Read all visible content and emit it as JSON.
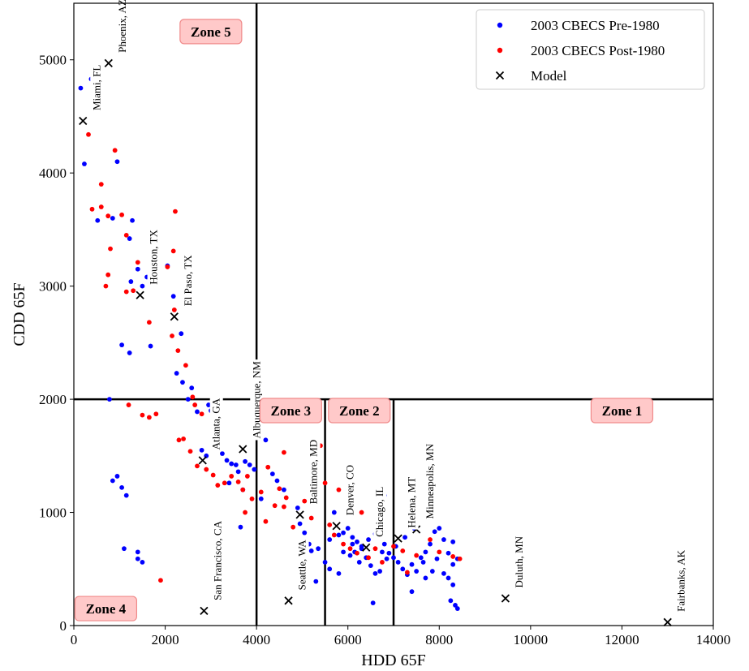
{
  "chart_data": {
    "type": "scatter",
    "xlabel": "HDD 65F",
    "ylabel": "CDD 65F",
    "xlim": [
      0,
      14000
    ],
    "ylim": [
      0,
      5500
    ],
    "xticks": [
      "0",
      "2000",
      "4000",
      "6000",
      "8000",
      "10000",
      "12000",
      "14000"
    ],
    "yticks": [
      "0",
      "1000",
      "2000",
      "3000",
      "4000",
      "5000"
    ],
    "legend_position": "top-right",
    "grid": false,
    "series": [
      {
        "name": "2003 CBECS Pre-1980",
        "marker": "dot",
        "color": "#0000ff",
        "points": [
          [
            150,
            4750
          ],
          [
            380,
            4830
          ],
          [
            230,
            4080
          ],
          [
            520,
            3580
          ],
          [
            850,
            3600
          ],
          [
            950,
            4100
          ],
          [
            1280,
            3580
          ],
          [
            1220,
            3420
          ],
          [
            1500,
            3000
          ],
          [
            1600,
            3080
          ],
          [
            1400,
            3150
          ],
          [
            1250,
            3040
          ],
          [
            1050,
            2480
          ],
          [
            1220,
            2410
          ],
          [
            1680,
            2470
          ],
          [
            2050,
            3180
          ],
          [
            2180,
            2910
          ],
          [
            2350,
            2580
          ],
          [
            2250,
            2230
          ],
          [
            2380,
            2150
          ],
          [
            2500,
            2000
          ],
          [
            2580,
            2100
          ],
          [
            2700,
            1890
          ],
          [
            2950,
            1950
          ],
          [
            3000,
            1900
          ],
          [
            3200,
            1820
          ],
          [
            3100,
            1650
          ],
          [
            2800,
            1550
          ],
          [
            2900,
            1500
          ],
          [
            3250,
            1520
          ],
          [
            3350,
            1460
          ],
          [
            3450,
            1430
          ],
          [
            3550,
            1420
          ],
          [
            3600,
            1360
          ],
          [
            3750,
            1450
          ],
          [
            3850,
            1420
          ],
          [
            3950,
            1380
          ],
          [
            3400,
            1260
          ],
          [
            3700,
            1200
          ],
          [
            4200,
            1640
          ],
          [
            4350,
            1340
          ],
          [
            4450,
            1280
          ],
          [
            4600,
            1200
          ],
          [
            4100,
            1120
          ],
          [
            3650,
            870
          ],
          [
            780,
            2000
          ],
          [
            850,
            1280
          ],
          [
            950,
            1320
          ],
          [
            1050,
            1220
          ],
          [
            1150,
            1150
          ],
          [
            1100,
            680
          ],
          [
            1400,
            650
          ],
          [
            1500,
            560
          ],
          [
            1400,
            590
          ],
          [
            4900,
            1040
          ],
          [
            4950,
            900
          ],
          [
            5050,
            820
          ],
          [
            5150,
            720
          ],
          [
            5200,
            660
          ],
          [
            5350,
            680
          ],
          [
            5300,
            1380
          ],
          [
            5700,
            1000
          ],
          [
            5600,
            760
          ],
          [
            5800,
            800
          ],
          [
            5900,
            820
          ],
          [
            6000,
            860
          ],
          [
            6100,
            780
          ],
          [
            6200,
            740
          ],
          [
            6300,
            700
          ],
          [
            6150,
            650
          ],
          [
            6050,
            620
          ],
          [
            6250,
            560
          ],
          [
            6400,
            600
          ],
          [
            6500,
            530
          ],
          [
            6600,
            460
          ],
          [
            6700,
            480
          ],
          [
            6800,
            720
          ],
          [
            6900,
            640
          ],
          [
            7000,
            600
          ],
          [
            7100,
            560
          ],
          [
            7200,
            500
          ],
          [
            7300,
            450
          ],
          [
            7400,
            540
          ],
          [
            7500,
            480
          ],
          [
            7600,
            600
          ],
          [
            7700,
            650
          ],
          [
            7800,
            720
          ],
          [
            7900,
            830
          ],
          [
            8000,
            860
          ],
          [
            8100,
            760
          ],
          [
            8200,
            640
          ],
          [
            8300,
            540
          ],
          [
            8400,
            590
          ],
          [
            8100,
            460
          ],
          [
            8200,
            420
          ],
          [
            8300,
            360
          ],
          [
            8250,
            220
          ],
          [
            8350,
            180
          ],
          [
            8400,
            150
          ],
          [
            8300,
            740
          ],
          [
            7950,
            590
          ],
          [
            7700,
            420
          ],
          [
            7400,
            300
          ],
          [
            6550,
            200
          ],
          [
            6800,
            1150
          ],
          [
            6000,
            1080
          ],
          [
            5500,
            560
          ],
          [
            5600,
            500
          ],
          [
            5800,
            460
          ],
          [
            5300,
            390
          ],
          [
            5900,
            650
          ],
          [
            6100,
            720
          ],
          [
            6300,
            680
          ],
          [
            6450,
            760
          ],
          [
            6600,
            810
          ],
          [
            6750,
            650
          ],
          [
            6850,
            590
          ],
          [
            7050,
            700
          ],
          [
            7250,
            780
          ],
          [
            7450,
            860
          ],
          [
            7650,
            560
          ],
          [
            7850,
            480
          ]
        ]
      },
      {
        "name": "2003 CBECS Post-1980",
        "marker": "dot",
        "color": "#ff0000",
        "points": [
          [
            320,
            4340
          ],
          [
            900,
            4200
          ],
          [
            600,
            3900
          ],
          [
            400,
            3680
          ],
          [
            600,
            3700
          ],
          [
            750,
            3620
          ],
          [
            1050,
            3630
          ],
          [
            1150,
            3450
          ],
          [
            800,
            3330
          ],
          [
            1400,
            3210
          ],
          [
            2050,
            3170
          ],
          [
            2180,
            3310
          ],
          [
            2220,
            3660
          ],
          [
            1300,
            2960
          ],
          [
            750,
            3100
          ],
          [
            700,
            3000
          ],
          [
            1150,
            2950
          ],
          [
            1650,
            2680
          ],
          [
            2200,
            2790
          ],
          [
            2150,
            2560
          ],
          [
            2280,
            2430
          ],
          [
            2450,
            2300
          ],
          [
            2600,
            2020
          ],
          [
            1200,
            1950
          ],
          [
            1500,
            1860
          ],
          [
            1650,
            1840
          ],
          [
            1800,
            1870
          ],
          [
            2650,
            1950
          ],
          [
            2800,
            1870
          ],
          [
            2300,
            1640
          ],
          [
            2400,
            1650
          ],
          [
            2550,
            1540
          ],
          [
            2700,
            1410
          ],
          [
            2900,
            1380
          ],
          [
            3050,
            1330
          ],
          [
            3150,
            1240
          ],
          [
            3300,
            1260
          ],
          [
            3450,
            1320
          ],
          [
            3600,
            1270
          ],
          [
            3700,
            1200
          ],
          [
            3800,
            1320
          ],
          [
            4250,
            1400
          ],
          [
            4600,
            1530
          ],
          [
            4500,
            1210
          ],
          [
            4650,
            1130
          ],
          [
            4800,
            870
          ],
          [
            3750,
            1000
          ],
          [
            3900,
            1120
          ],
          [
            4100,
            1180
          ],
          [
            4400,
            1060
          ],
          [
            5050,
            1100
          ],
          [
            5200,
            950
          ],
          [
            5400,
            1590
          ],
          [
            5500,
            1260
          ],
          [
            5600,
            890
          ],
          [
            5700,
            800
          ],
          [
            5900,
            720
          ],
          [
            6050,
            680
          ],
          [
            6200,
            640
          ],
          [
            6450,
            600
          ],
          [
            6600,
            680
          ],
          [
            6750,
            560
          ],
          [
            7000,
            700
          ],
          [
            7200,
            660
          ],
          [
            7300,
            470
          ],
          [
            7500,
            620
          ],
          [
            7800,
            760
          ],
          [
            8000,
            650
          ],
          [
            8300,
            610
          ],
          [
            8450,
            590
          ],
          [
            6300,
            1000
          ],
          [
            5800,
            1200
          ],
          [
            1900,
            400
          ],
          [
            4600,
            1050
          ],
          [
            4200,
            920
          ]
        ]
      },
      {
        "name": "Model",
        "marker": "x",
        "color": "#000000",
        "points": [
          {
            "x": 760,
            "y": 4970,
            "city": "Phoenix, AZ"
          },
          {
            "x": 200,
            "y": 4460,
            "city": "Miami, FL"
          },
          {
            "x": 1450,
            "y": 2920,
            "city": "Houston, TX"
          },
          {
            "x": 2200,
            "y": 2730,
            "city": "El Paso, TX"
          },
          {
            "x": 2820,
            "y": 1460,
            "city": "Atlanta, GA"
          },
          {
            "x": 3700,
            "y": 1560,
            "city": "Albuquerque, NM"
          },
          {
            "x": 2850,
            "y": 130,
            "city": "San Francisco, CA"
          },
          {
            "x": 4950,
            "y": 980,
            "city": "Baltimore, MD"
          },
          {
            "x": 4700,
            "y": 220,
            "city": "Seattle, WA"
          },
          {
            "x": 5750,
            "y": 880,
            "city": "Denver, CO"
          },
          {
            "x": 6400,
            "y": 690,
            "city": "Chicago, IL"
          },
          {
            "x": 7100,
            "y": 770,
            "city": "Helena, MT"
          },
          {
            "x": 7500,
            "y": 850,
            "city": "Minneapolis, MN"
          },
          {
            "x": 9450,
            "y": 240,
            "city": "Duluth, MN"
          },
          {
            "x": 13000,
            "y": 30,
            "city": "Fairbanks, AK"
          }
        ]
      }
    ],
    "zone_boundaries": {
      "vertical_lines": [
        {
          "x": 4000,
          "y_range": [
            0,
            5500
          ]
        },
        {
          "x": 5500,
          "y_range": [
            0,
            2000
          ]
        },
        {
          "x": 7000,
          "y_range": [
            0,
            2000
          ]
        }
      ],
      "horizontal_lines": [
        {
          "y": 2000,
          "x_range": [
            0,
            14000
          ]
        }
      ]
    },
    "zones": [
      {
        "label": "Zone 5",
        "x": 3000,
        "y": 5250
      },
      {
        "label": "Zone 3",
        "x": 4750,
        "y": 1900
      },
      {
        "label": "Zone 2",
        "x": 6250,
        "y": 1900
      },
      {
        "label": "Zone 1",
        "x": 12000,
        "y": 1900
      },
      {
        "label": "Zone 4",
        "x": 700,
        "y": 150
      }
    ]
  }
}
